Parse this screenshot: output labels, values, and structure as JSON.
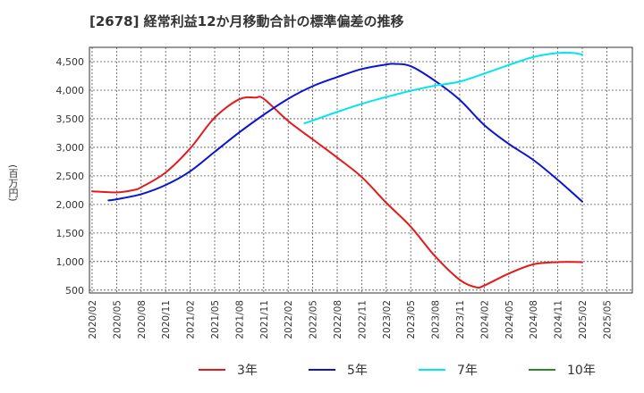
{
  "chart_data": {
    "type": "line",
    "title": "[2678]  経常利益12か月移動合計の標準偏差の推移",
    "ylabel": "(百万円)",
    "xlabel": "",
    "ylim": [
      450,
      4750
    ],
    "yticks": [
      500,
      1000,
      1500,
      2000,
      2500,
      3000,
      3500,
      4000,
      4500
    ],
    "ytick_labels": [
      "500",
      "1,000",
      "1,500",
      "2,000",
      "2,500",
      "3,000",
      "3,500",
      "4,000",
      "4,500"
    ],
    "xticks": [
      "2020/02",
      "2020/05",
      "2020/08",
      "2020/11",
      "2021/02",
      "2021/05",
      "2021/08",
      "2021/11",
      "2022/02",
      "2022/05",
      "2022/08",
      "2022/11",
      "2023/02",
      "2023/05",
      "2023/08",
      "2023/11",
      "2024/02",
      "2024/05",
      "2024/08",
      "2024/11",
      "2025/02",
      "2025/05"
    ],
    "grid": true,
    "legend_position": "bottom",
    "series": [
      {
        "name": "3年",
        "color": "#e31a1c",
        "points": [
          [
            "2020/02",
            2230
          ],
          [
            "2020/05",
            2210
          ],
          [
            "2020/07",
            2250
          ],
          [
            "2020/08",
            2300
          ],
          [
            "2020/11",
            2560
          ],
          [
            "2021/02",
            2980
          ],
          [
            "2021/05",
            3520
          ],
          [
            "2021/08",
            3840
          ],
          [
            "2021/10",
            3870
          ],
          [
            "2021/11",
            3850
          ],
          [
            "2022/02",
            3460
          ],
          [
            "2022/05",
            3140
          ],
          [
            "2022/08",
            2820
          ],
          [
            "2022/11",
            2480
          ],
          [
            "2023/02",
            2030
          ],
          [
            "2023/05",
            1610
          ],
          [
            "2023/08",
            1090
          ],
          [
            "2023/11",
            680
          ],
          [
            "2024/01",
            550
          ],
          [
            "2024/02",
            580
          ],
          [
            "2024/05",
            790
          ],
          [
            "2024/08",
            950
          ],
          [
            "2024/11",
            990
          ],
          [
            "2025/02",
            990
          ]
        ]
      },
      {
        "name": "5年",
        "color": "#0a14d2",
        "points": [
          [
            "2020/04",
            2070
          ],
          [
            "2020/05",
            2090
          ],
          [
            "2020/08",
            2180
          ],
          [
            "2020/11",
            2340
          ],
          [
            "2021/02",
            2580
          ],
          [
            "2021/05",
            2920
          ],
          [
            "2021/08",
            3260
          ],
          [
            "2021/11",
            3570
          ],
          [
            "2022/02",
            3850
          ],
          [
            "2022/05",
            4070
          ],
          [
            "2022/08",
            4230
          ],
          [
            "2022/11",
            4370
          ],
          [
            "2023/02",
            4450
          ],
          [
            "2023/03",
            4460
          ],
          [
            "2023/05",
            4420
          ],
          [
            "2023/08",
            4160
          ],
          [
            "2023/11",
            3830
          ],
          [
            "2024/02",
            3390
          ],
          [
            "2024/05",
            3060
          ],
          [
            "2024/08",
            2780
          ],
          [
            "2024/11",
            2430
          ],
          [
            "2025/02",
            2050
          ]
        ]
      },
      {
        "name": "7年",
        "color": "#00e5ee",
        "points": [
          [
            "2022/04",
            3420
          ],
          [
            "2022/05",
            3470
          ],
          [
            "2022/08",
            3620
          ],
          [
            "2022/11",
            3760
          ],
          [
            "2023/02",
            3880
          ],
          [
            "2023/05",
            3990
          ],
          [
            "2023/08",
            4080
          ],
          [
            "2023/11",
            4150
          ],
          [
            "2024/02",
            4290
          ],
          [
            "2024/05",
            4440
          ],
          [
            "2024/08",
            4580
          ],
          [
            "2024/11",
            4650
          ],
          [
            "2025/01",
            4650
          ],
          [
            "2025/02",
            4620
          ]
        ]
      },
      {
        "name": "10年",
        "color": "#2a8a2a",
        "points": []
      }
    ]
  }
}
